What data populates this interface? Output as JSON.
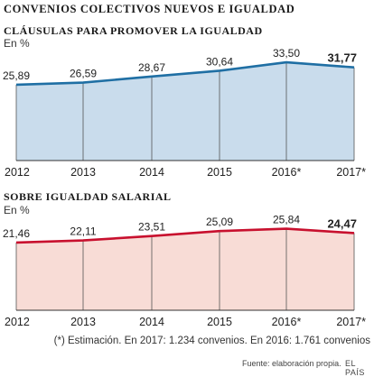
{
  "main_title": "CONVENIOS COLECTIVOS NUEVOS E IGUALDAD",
  "footnote": "(*) Estimación. En 2017: 1.234 convenios. En 2016: 1.761 convenios",
  "source": "Fuente: elaboración propia.",
  "brand": "EL PAÍS",
  "chart_data": [
    {
      "type": "area",
      "title": "CLÁUSULAS PARA PROMOVER LA IGUALDAD",
      "unit": "En %",
      "categories": [
        "2012",
        "2013",
        "2014",
        "2015",
        "2016*",
        "2017*"
      ],
      "values": [
        25.89,
        26.59,
        28.67,
        30.64,
        33.5,
        31.77
      ],
      "value_labels": [
        "25,89",
        "26,59",
        "28,67",
        "30,64",
        "33,50",
        "31,77"
      ],
      "ylim": [
        0,
        36
      ],
      "grid": "vertical",
      "line_color": "#1f6fa4",
      "fill_color": "#c9dcec",
      "last_value_bold": true
    },
    {
      "type": "area",
      "title": "SOBRE IGUALDAD SALARIAL",
      "unit": "En %",
      "categories": [
        "2012",
        "2013",
        "2014",
        "2015",
        "2016*",
        "2017*"
      ],
      "values": [
        21.46,
        22.11,
        23.51,
        25.09,
        25.84,
        24.47
      ],
      "value_labels": [
        "21,46",
        "22,11",
        "23,51",
        "25,09",
        "25,84",
        "24,47"
      ],
      "ylim": [
        0,
        28
      ],
      "grid": "vertical",
      "line_color": "#c8102e",
      "fill_color": "#f8dcd6",
      "last_value_bold": true
    }
  ]
}
